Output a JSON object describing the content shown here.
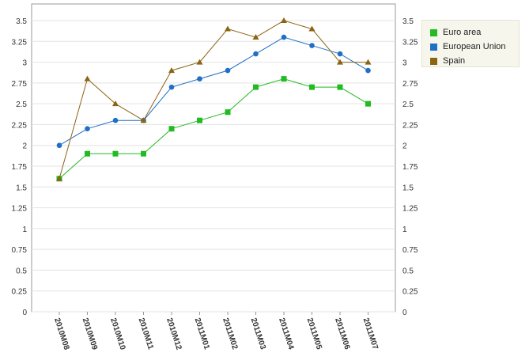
{
  "chart_data": {
    "type": "line",
    "categories": [
      "2010M08",
      "2010M09",
      "2010M10",
      "2010M11",
      "2010M12",
      "2011M01",
      "2011M02",
      "2011M03",
      "2011M04",
      "2011M05",
      "2011M06",
      "2011M07"
    ],
    "series": [
      {
        "name": "Euro area",
        "color": "#22bb22",
        "marker": "square",
        "values": [
          1.6,
          1.9,
          1.9,
          1.9,
          2.2,
          2.3,
          2.4,
          2.7,
          2.8,
          2.7,
          2.7,
          2.5
        ]
      },
      {
        "name": "European Union",
        "color": "#1f6fc6",
        "marker": "circle",
        "values": [
          2.0,
          2.2,
          2.3,
          2.3,
          2.7,
          2.8,
          2.9,
          3.1,
          3.3,
          3.2,
          3.1,
          2.9
        ]
      },
      {
        "name": "Spain",
        "color": "#8b6414",
        "marker": "triangle",
        "values": [
          1.6,
          2.8,
          2.5,
          2.3,
          2.9,
          3.0,
          3.4,
          3.3,
          3.5,
          3.4,
          3.0,
          3.0
        ]
      }
    ],
    "yticks": [
      "0",
      "0.25",
      "0.5",
      "0.75",
      "1",
      "1.25",
      "1.5",
      "1.75",
      "2",
      "2.25",
      "2.5",
      "2.75",
      "3",
      "3.25",
      "3.5"
    ],
    "ylim": [
      0,
      3.7
    ],
    "grid": true,
    "legend_position": "top-right",
    "y_axis_both_sides": true
  }
}
